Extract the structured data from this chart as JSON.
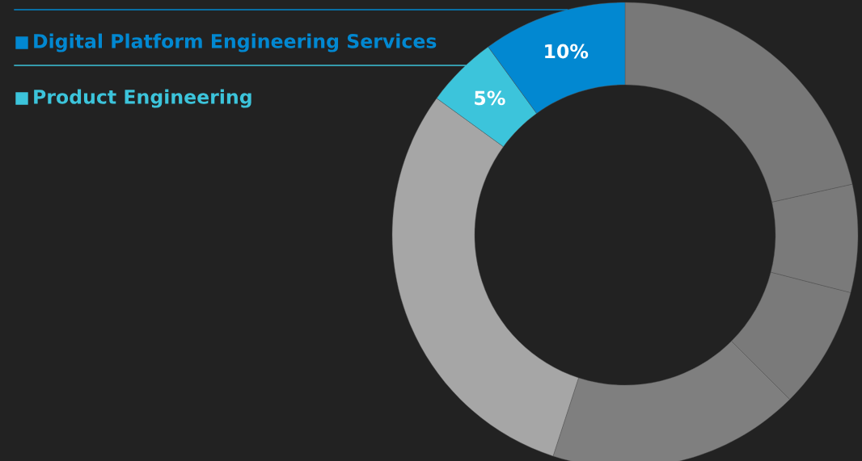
{
  "chart_data": {
    "type": "donut",
    "categories": [
      null,
      null,
      null,
      null,
      null,
      "Product Engineering",
      "Digital Platform Engineering Services"
    ],
    "values": [
      21.5,
      7.5,
      8.5,
      17.5,
      30,
      5,
      10
    ],
    "colors": [
      "#787878",
      "#7a7a7a",
      "#7a7a7a",
      "#7f7f7f",
      "#a6a6a6",
      "#3cc4db",
      "#0288d1"
    ],
    "value_labels": [
      null,
      null,
      null,
      null,
      null,
      "5%",
      "10%"
    ],
    "legend": "top left"
  }
}
